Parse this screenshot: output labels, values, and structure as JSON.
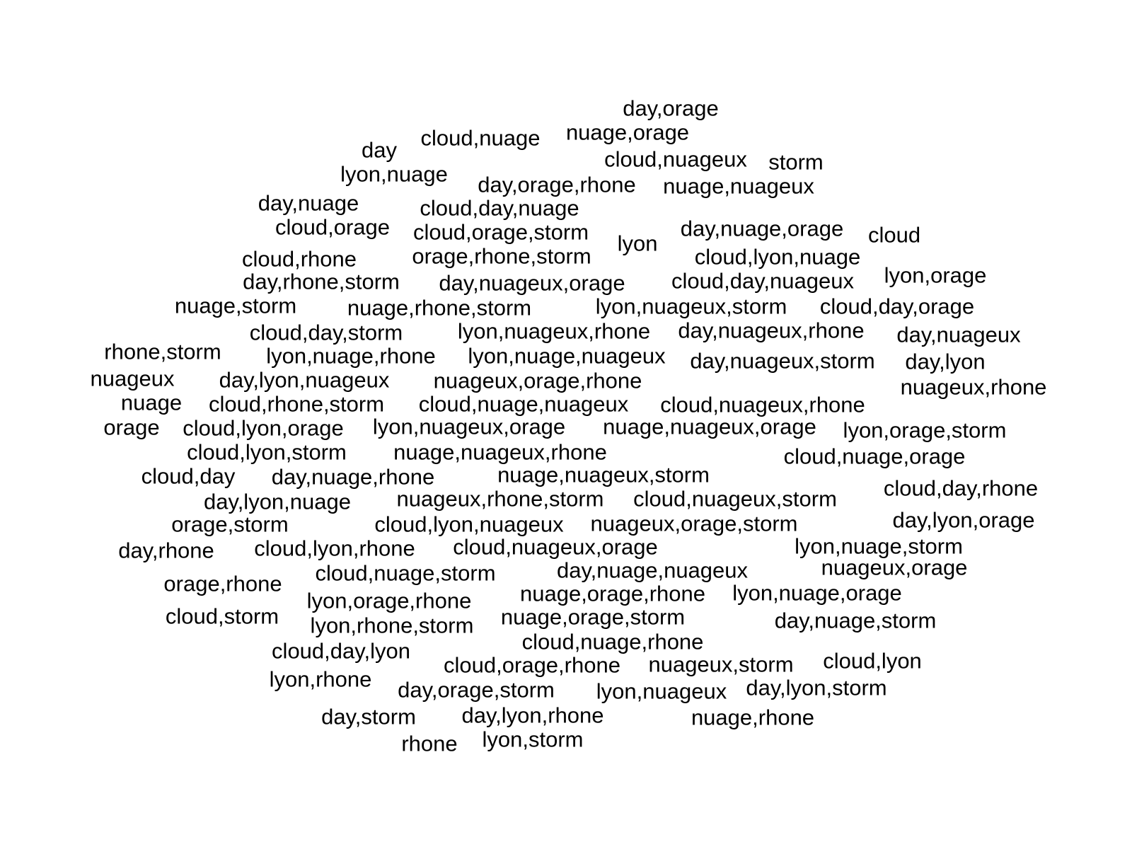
{
  "terms": [
    "day,orage",
    "cloud,nuage",
    "nuage,orage",
    "day",
    "cloud,nuageux",
    "storm",
    "lyon,nuage",
    "day,orage,rhone",
    "nuage,nuageux",
    "day,nuage",
    "cloud,day,nuage",
    "cloud,orage",
    "cloud,orage,storm",
    "lyon",
    "day,nuage,orage",
    "cloud",
    "cloud,rhone",
    "orage,rhone,storm",
    "cloud,lyon,nuage",
    "day,rhone,storm",
    "day,nuageux,orage",
    "cloud,day,nuageux",
    "lyon,orage",
    "nuage,storm",
    "nuage,rhone,storm",
    "lyon,nuageux,storm",
    "cloud,day,orage",
    "cloud,day,storm",
    "lyon,nuageux,rhone",
    "day,nuageux,rhone",
    "day,nuageux",
    "rhone,storm",
    "lyon,nuage,rhone",
    "lyon,nuage,nuageux",
    "day,nuageux,storm",
    "day,lyon",
    "nuageux",
    "day,lyon,nuageux",
    "nuageux,orage,rhone",
    "nuageux,rhone",
    "nuage",
    "cloud,rhone,storm",
    "cloud,nuage,nuageux",
    "cloud,nuageux,rhone",
    "orage",
    "cloud,lyon,orage",
    "lyon,nuageux,orage",
    "nuage,nuageux,orage",
    "lyon,orage,storm",
    "cloud,lyon,storm",
    "nuage,nuageux,rhone",
    "cloud,nuage,orage",
    "cloud,day",
    "day,nuage,rhone",
    "nuage,nuageux,storm",
    "cloud,day,rhone",
    "day,lyon,nuage",
    "nuageux,rhone,storm",
    "cloud,nuageux,storm",
    "orage,storm",
    "cloud,lyon,nuageux",
    "nuageux,orage,storm",
    "day,lyon,orage",
    "day,rhone",
    "cloud,lyon,rhone",
    "cloud,nuageux,orage",
    "lyon,nuage,storm",
    "day,nuage,nuageux",
    "nuageux,orage",
    "orage,rhone",
    "cloud,nuage,storm",
    "nuage,orage,rhone",
    "lyon,nuage,orage",
    "lyon,orage,rhone",
    "cloud,storm",
    "lyon,rhone,storm",
    "nuage,orage,storm",
    "day,nuage,storm",
    "cloud,nuage,rhone",
    "cloud,day,lyon",
    "cloud,orage,rhone",
    "nuageux,storm",
    "cloud,lyon",
    "lyon,rhone",
    "day,orage,storm",
    "lyon,nuageux",
    "day,lyon,storm",
    "day,storm",
    "day,lyon,rhone",
    "nuage,rhone",
    "rhone",
    "lyon,storm"
  ]
}
